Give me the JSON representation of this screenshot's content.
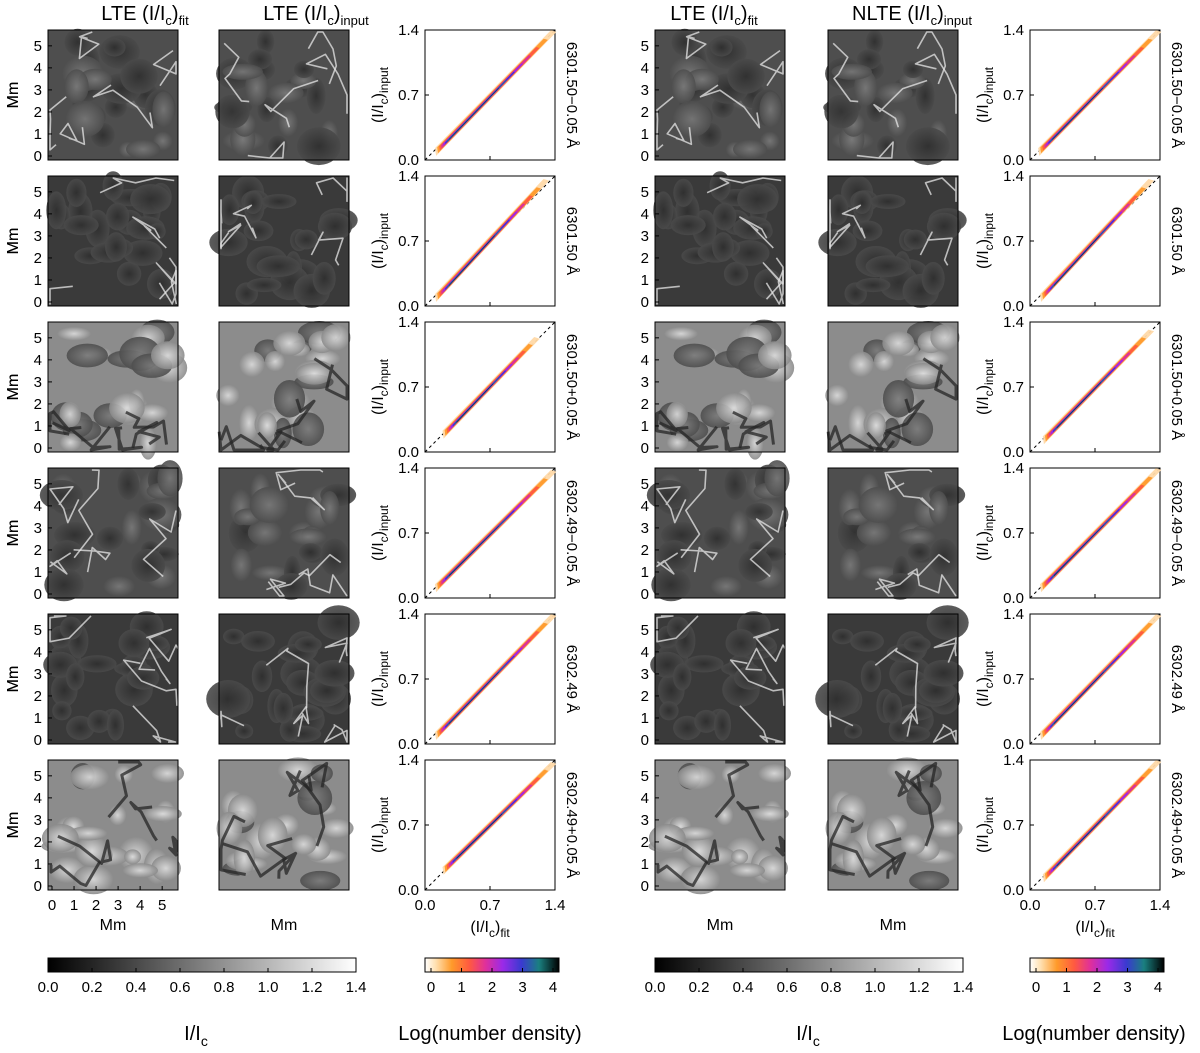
{
  "panels": {
    "left": {
      "title_fit": "LTE (I/I",
      "title_fit_sub": "c",
      "title_fit_tail": ")",
      "title_fit_subscript": "fit",
      "title_input": "LTE (I/I",
      "title_input_sub": "c",
      "title_input_tail": ")",
      "title_input_subscript": "input"
    },
    "right": {
      "title_fit": "LTE (I/I",
      "title_fit_sub": "c",
      "title_fit_tail": ")",
      "title_fit_subscript": "fit",
      "title_input": "NLTE (I/I",
      "title_input_sub": "c",
      "title_input_tail": ")",
      "title_input_subscript": "input"
    }
  },
  "map_axis": {
    "label": "Mm",
    "ticks": [
      "0",
      "1",
      "2",
      "3",
      "4",
      "5"
    ]
  },
  "scatter_axis": {
    "ticks": [
      "0.0",
      "0.7",
      "1.4"
    ],
    "ylabel_main": "(I/I",
    "ylabel_sub_c": "c",
    "ylabel_close": ")",
    "ylabel_sub": "input",
    "xlabel_main": "(I/I",
    "xlabel_sub_c": "c",
    "xlabel_close": ")",
    "xlabel_sub": "fit"
  },
  "wavelengths": [
    "6301.50−0.05 Å",
    "6301.50 Å",
    "6301.50+0.05 Å",
    "6302.49−0.05 Å",
    "6302.49 Å",
    "6302.49+0.05 Å"
  ],
  "colorbars": {
    "intensity": {
      "label_main": "I/I",
      "label_sub": "c",
      "ticks": [
        "0.0",
        "0.2",
        "0.4",
        "0.6",
        "0.8",
        "1.0",
        "1.2",
        "1.4"
      ]
    },
    "density": {
      "label": "Log(number density)",
      "ticks": [
        "0",
        "1",
        "2",
        "3",
        "4"
      ]
    }
  },
  "chart_data": [
    {
      "type": "scatter",
      "group": "LTE fit vs LTE input",
      "xlabel": "(I/Ic)fit",
      "ylabel": "(I/Ic)input",
      "xlim": [
        0,
        1.4
      ],
      "ylim": [
        0,
        1.4
      ],
      "rows": [
        {
          "wavelength": "6301.50−0.05 Å",
          "x": [
            0.12,
            1.38
          ],
          "y": [
            0.08,
            1.38
          ]
        },
        {
          "wavelength": "6301.50 Å",
          "x": [
            0.12,
            1.3
          ],
          "y": [
            0.08,
            1.35
          ]
        },
        {
          "wavelength": "6301.50+0.05 Å",
          "x": [
            0.2,
            1.2
          ],
          "y": [
            0.18,
            1.22
          ]
        },
        {
          "wavelength": "6302.49−0.05 Å",
          "x": [
            0.12,
            1.38
          ],
          "y": [
            0.1,
            1.36
          ]
        },
        {
          "wavelength": "6302.49 Å",
          "x": [
            0.12,
            1.38
          ],
          "y": [
            0.08,
            1.38
          ]
        },
        {
          "wavelength": "6302.49+0.05 Å",
          "x": [
            0.2,
            1.38
          ],
          "y": [
            0.2,
            1.36
          ]
        }
      ]
    },
    {
      "type": "scatter",
      "group": "LTE fit vs NLTE input",
      "xlabel": "(I/Ic)fit",
      "ylabel": "(I/Ic)input",
      "xlim": [
        0,
        1.4
      ],
      "ylim": [
        0,
        1.4
      ],
      "rows": [
        {
          "wavelength": "6301.50−0.05 Å",
          "x": [
            0.1,
            1.38
          ],
          "y": [
            0.08,
            1.38
          ]
        },
        {
          "wavelength": "6301.50 Å",
          "x": [
            0.12,
            1.3
          ],
          "y": [
            0.08,
            1.35
          ]
        },
        {
          "wavelength": "6301.50+0.05 Å",
          "x": [
            0.15,
            1.3
          ],
          "y": [
            0.12,
            1.3
          ]
        },
        {
          "wavelength": "6302.49−0.05 Å",
          "x": [
            0.12,
            1.38
          ],
          "y": [
            0.1,
            1.38
          ]
        },
        {
          "wavelength": "6302.49 Å",
          "x": [
            0.12,
            1.38
          ],
          "y": [
            0.08,
            1.38
          ]
        },
        {
          "wavelength": "6302.49+0.05 Å",
          "x": [
            0.15,
            1.38
          ],
          "y": [
            0.12,
            1.38
          ]
        }
      ]
    }
  ]
}
